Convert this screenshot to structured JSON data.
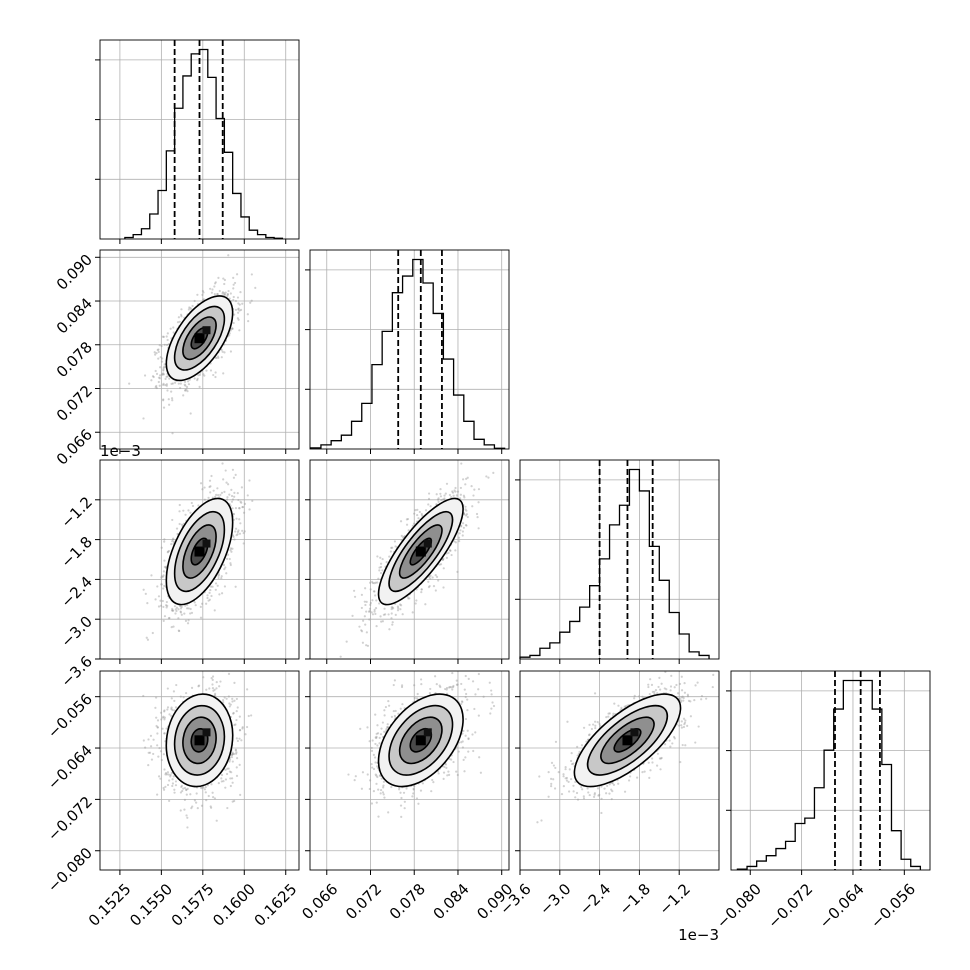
{
  "chart_data": {
    "type": "corner",
    "n_params": 4,
    "grid": true,
    "params": [
      {
        "range": [
          0.1513,
          0.1633
        ],
        "ticks": [
          0.1525,
          0.155,
          0.1575,
          0.16,
          0.1625
        ],
        "tick_labels": [
          "0.1525",
          "0.1550",
          "0.1575",
          "0.1600",
          "0.1625"
        ],
        "quantiles": [
          0.1558,
          0.1573,
          0.1587
        ],
        "center": 0.1573,
        "sigma": 0.001
      },
      {
        "range": [
          0.0637,
          0.091
        ],
        "ticks": [
          0.066,
          0.072,
          0.078,
          0.084,
          0.09
        ],
        "tick_labels": [
          "0.066",
          "0.072",
          "0.078",
          "0.084",
          "0.090"
        ],
        "quantiles": [
          0.0758,
          0.0789,
          0.0818
        ],
        "center": 0.0789,
        "sigma": 0.0029
      },
      {
        "range": [
          -3.6,
          -0.6
        ],
        "ticks": [
          -3.6,
          -3.0,
          -2.4,
          -1.8,
          -1.2
        ],
        "tick_labels": [
          "−3.6",
          "−3.0",
          "−2.4",
          "−1.8",
          "−1.2"
        ],
        "offset_label": "1e−3",
        "quantiles": [
          -2.4,
          -1.98,
          -1.6
        ],
        "center": -1.98,
        "sigma": 0.4
      },
      {
        "range": [
          -0.083,
          -0.052
        ],
        "ticks": [
          -0.08,
          -0.072,
          -0.064,
          -0.056
        ],
        "tick_labels": [
          "−0.080",
          "−0.072",
          "−0.064",
          "−0.056"
        ],
        "quantiles": [
          -0.0668,
          -0.0628,
          -0.0598
        ],
        "center": -0.0628,
        "sigma": 0.0036
      }
    ],
    "histograms": [
      {
        "param": 0,
        "bin_edges": [
          0.1528,
          0.1533,
          0.1538,
          0.1543,
          0.1548,
          0.1553,
          0.1558,
          0.1563,
          0.1568,
          0.1573,
          0.1578,
          0.1583,
          0.1588,
          0.1593,
          0.1598,
          0.1603,
          0.1608,
          0.1613,
          0.1618,
          0.1623
        ],
        "counts": [
          10,
          30,
          70,
          170,
          330,
          600,
          890,
          1110,
          1260,
          1290,
          1100,
          820,
          590,
          310,
          150,
          60,
          30,
          10,
          5
        ]
      },
      {
        "param": 1,
        "bin_edges": [
          0.0638,
          0.0652,
          0.0666,
          0.068,
          0.0694,
          0.0708,
          0.0722,
          0.0736,
          0.075,
          0.0764,
          0.0778,
          0.0792,
          0.0806,
          0.082,
          0.0834,
          0.0848,
          0.0862,
          0.0876,
          0.089,
          0.0904
        ],
        "counts": [
          8,
          30,
          60,
          100,
          200,
          330,
          610,
          850,
          1130,
          1250,
          1370,
          1200,
          980,
          650,
          390,
          200,
          70,
          30,
          5
        ]
      },
      {
        "param": 2,
        "bin_edges": [
          -3.6,
          -3.45,
          -3.3,
          -3.15,
          -3.0,
          -2.85,
          -2.7,
          -2.55,
          -2.4,
          -2.25,
          -2.1,
          -1.95,
          -1.8,
          -1.65,
          -1.5,
          -1.35,
          -1.2,
          -1.05,
          -0.9,
          -0.75
        ],
        "counts": [
          10,
          20,
          60,
          90,
          150,
          210,
          290,
          410,
          560,
          750,
          860,
          1060,
          940,
          630,
          440,
          260,
          140,
          40,
          20
        ]
      },
      {
        "param": 3,
        "bin_edges": [
          -0.082,
          -0.0805,
          -0.079,
          -0.0775,
          -0.076,
          -0.0745,
          -0.073,
          -0.0715,
          -0.07,
          -0.0685,
          -0.067,
          -0.0655,
          -0.064,
          -0.0625,
          -0.061,
          -0.0595,
          -0.058,
          -0.0565,
          -0.055,
          -0.0535
        ],
        "counts": [
          5,
          20,
          50,
          80,
          120,
          160,
          260,
          290,
          460,
          670,
          900,
          1060,
          1060,
          1060,
          900,
          590,
          220,
          60,
          20
        ]
      }
    ],
    "pairs": [
      {
        "x": 0,
        "y": 1,
        "corr": 0.6
      },
      {
        "x": 0,
        "y": 2,
        "corr": 0.55
      },
      {
        "x": 1,
        "y": 2,
        "corr": 0.8
      },
      {
        "x": 0,
        "y": 3,
        "corr": 0.1
      },
      {
        "x": 1,
        "y": 3,
        "corr": 0.45
      },
      {
        "x": 2,
        "y": 3,
        "corr": 0.7
      }
    ],
    "contour_levels_sigma": [
      0.5,
      1.0,
      1.5,
      2.0
    ]
  }
}
